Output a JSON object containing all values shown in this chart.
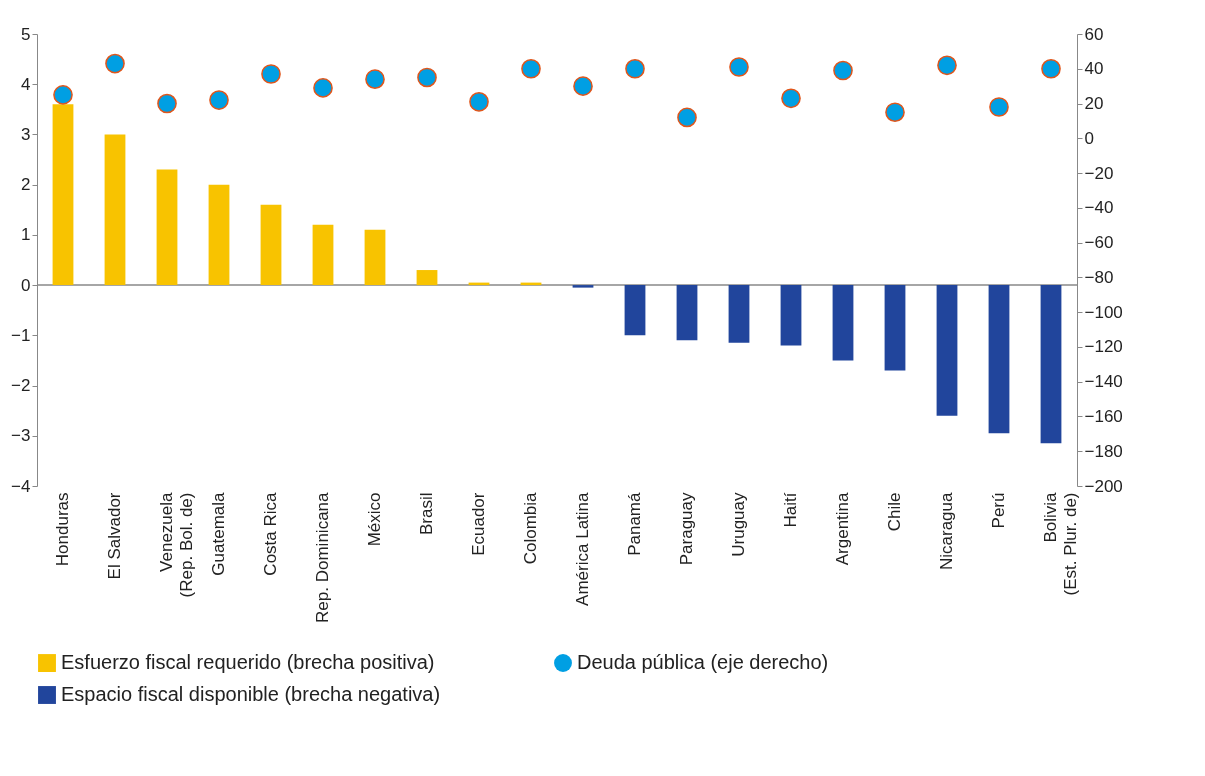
{
  "chart_data": {
    "type": "bar",
    "categories": [
      "Honduras",
      "El Salvador",
      "Venezuela\n(Rep. Bol. de)",
      "Guatemala",
      "Costa Rica",
      "Rep. Dominicana",
      "México",
      "Brasil",
      "Ecuador",
      "Colombia",
      "América Latina",
      "Panamá",
      "Paraguay",
      "Uruguay",
      "Haití",
      "Argentina",
      "Chile",
      "Nicaragua",
      "Perú",
      "Bolivia\n(Est. Plur. de)"
    ],
    "series": [
      {
        "name": "Esfuerzo fiscal requerido (brecha positiva)",
        "color": "#f8c300",
        "values": [
          3.6,
          3.0,
          2.3,
          2.0,
          1.6,
          1.2,
          1.1,
          0.3,
          0.05,
          0.05,
          null,
          null,
          null,
          null,
          null,
          null,
          null,
          null,
          null,
          null
        ]
      },
      {
        "name": "Deuda pública (eje derecho)",
        "type": "scatter",
        "axis": "y2",
        "color": "#009fe3",
        "values": [
          25,
          43,
          20,
          22,
          37,
          29,
          34,
          35,
          21,
          40,
          30,
          40,
          12,
          41,
          23,
          39,
          15,
          42,
          18,
          40
        ]
      },
      {
        "name": "Espacio fiscal disponible (brecha negativa)",
        "color": "#21459c",
        "values": [
          null,
          null,
          null,
          null,
          null,
          null,
          null,
          null,
          null,
          null,
          -0.05,
          -1.0,
          -1.1,
          -1.15,
          -1.2,
          -1.5,
          -1.7,
          -2.6,
          -2.95,
          -3.15
        ]
      }
    ],
    "ylim": [
      -4,
      5
    ],
    "yticks": [
      -4,
      -3,
      -2,
      -1,
      0,
      1,
      2,
      3,
      4,
      5
    ],
    "y2lim": [
      -200,
      60
    ],
    "y2ticks": [
      -200,
      -180,
      -160,
      -140,
      -120,
      -100,
      -80,
      -60,
      -40,
      -20,
      0,
      20,
      40,
      60
    ],
    "marker": "circle",
    "legend": "bottom"
  }
}
